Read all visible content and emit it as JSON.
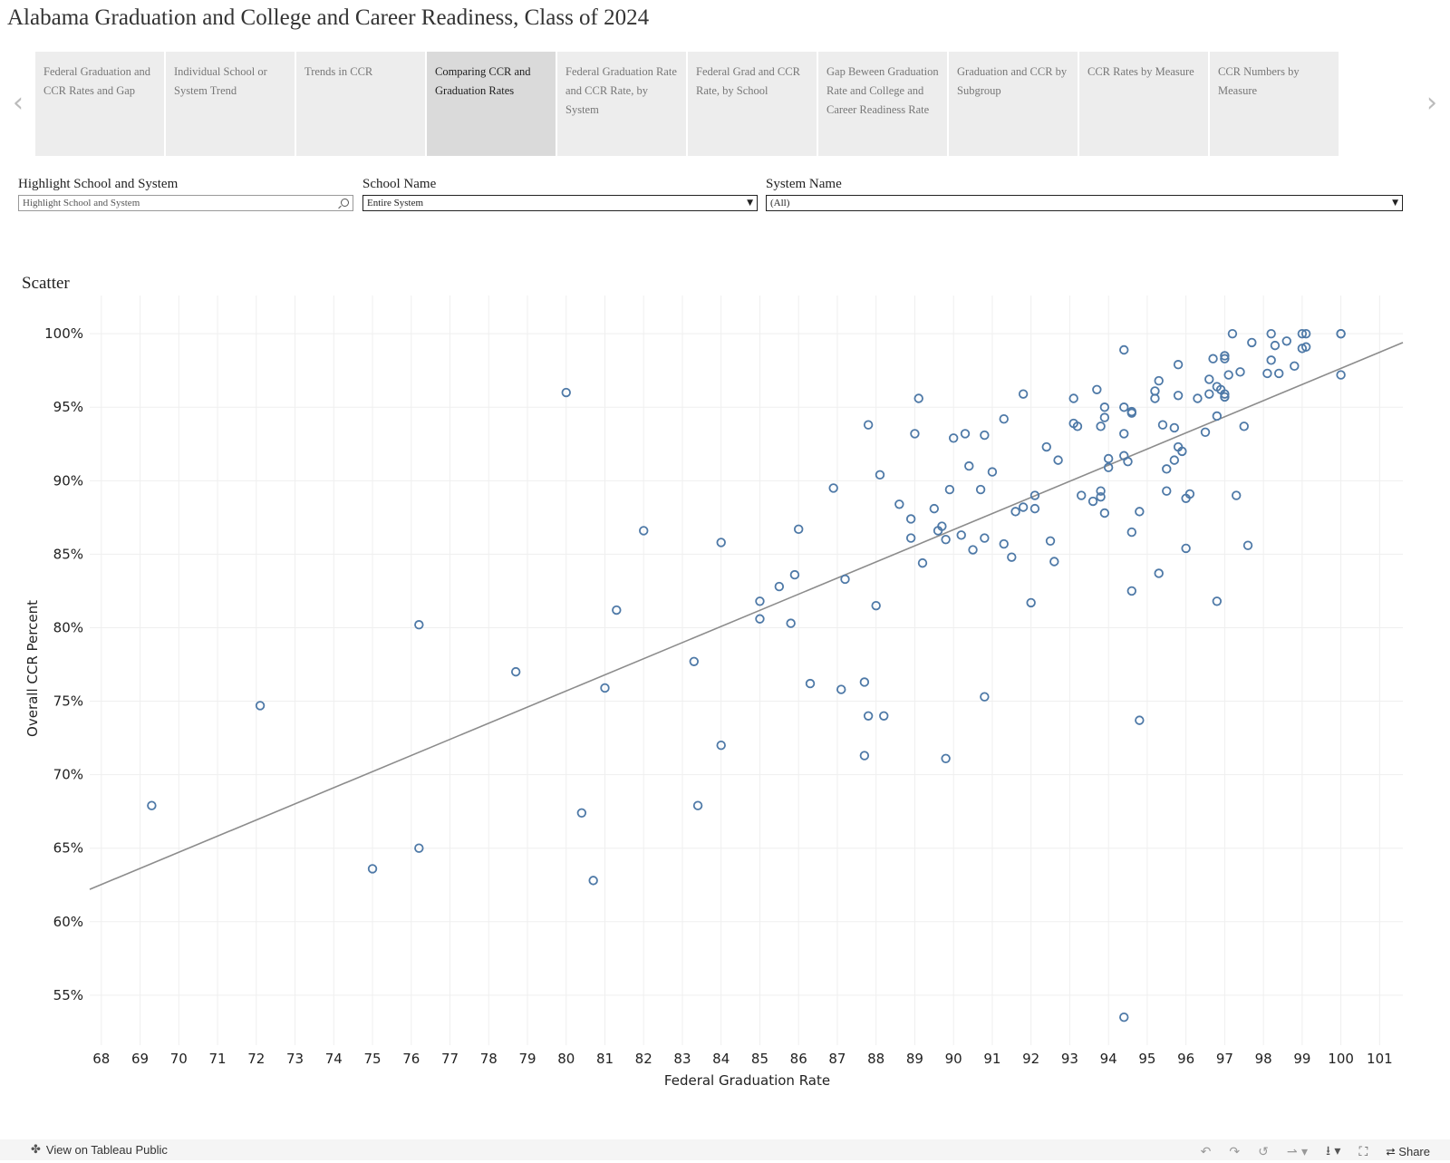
{
  "page_title": "Alabama Graduation and College and Career Readiness, Class of 2024",
  "tabs": [
    {
      "label": "Federal Graduation and CCR Rates and Gap",
      "active": false
    },
    {
      "label": "Individual School or System Trend",
      "active": false
    },
    {
      "label": "Trends in CCR",
      "active": false
    },
    {
      "label": "Comparing CCR and Graduation Rates",
      "active": true
    },
    {
      "label": "Federal Graduation Rate and CCR Rate, by System",
      "active": false
    },
    {
      "label": "Federal Grad and CCR Rate, by School",
      "active": false
    },
    {
      "label": "Gap Beween Graduation Rate and College and Career Readiness Rate",
      "active": false
    },
    {
      "label": "Graduation and CCR by Subgroup",
      "active": false
    },
    {
      "label": "CCR Rates by Measure",
      "active": false
    },
    {
      "label": "CCR Numbers by Measure",
      "active": false
    }
  ],
  "filters": {
    "highlight": {
      "label": "Highlight School and System",
      "placeholder": "Highlight School and System"
    },
    "school": {
      "label": "School Name",
      "value": "Entire System"
    },
    "system": {
      "label": "System Name",
      "value": "(All)"
    }
  },
  "chart_title": "Scatter",
  "toolbar": {
    "view_on": "View on Tableau Public",
    "share": "Share"
  },
  "colors": {
    "marker": "#4e79a7",
    "trend": "#8c8c8c",
    "tab_active": "#dadada",
    "tab": "#ededed"
  },
  "chart_data": {
    "type": "scatter",
    "xlabel": "Federal Graduation Rate",
    "ylabel": "Overall CCR Percent",
    "xlim": [
      67.7,
      101.6
    ],
    "ylim": [
      51.6,
      102.6
    ],
    "x_ticks": [
      68,
      69,
      70,
      71,
      72,
      73,
      74,
      75,
      76,
      77,
      78,
      79,
      80,
      81,
      82,
      83,
      84,
      85,
      86,
      87,
      88,
      89,
      90,
      91,
      92,
      93,
      94,
      95,
      96,
      97,
      98,
      99,
      100,
      101
    ],
    "y_ticks": [
      55,
      60,
      65,
      70,
      75,
      80,
      85,
      90,
      95,
      100
    ],
    "y_tick_labels": [
      "55%",
      "60%",
      "65%",
      "70%",
      "75%",
      "80%",
      "85%",
      "90%",
      "95%",
      "100%"
    ],
    "grid": true,
    "trend_line": {
      "x": [
        67.7,
        101.6
      ],
      "y": [
        62.2,
        99.4
      ]
    },
    "points": [
      [
        69.3,
        67.9
      ],
      [
        72.1,
        74.7
      ],
      [
        75.0,
        63.6
      ],
      [
        76.2,
        80.2
      ],
      [
        76.2,
        65.0
      ],
      [
        78.7,
        77.0
      ],
      [
        80.0,
        96.0
      ],
      [
        80.4,
        67.4
      ],
      [
        80.7,
        62.8
      ],
      [
        81.0,
        75.9
      ],
      [
        81.3,
        81.2
      ],
      [
        82.0,
        86.6
      ],
      [
        83.3,
        77.7
      ],
      [
        83.4,
        67.9
      ],
      [
        84.0,
        85.8
      ],
      [
        84.0,
        72.0
      ],
      [
        85.0,
        81.8
      ],
      [
        85.0,
        80.6
      ],
      [
        85.5,
        82.8
      ],
      [
        85.8,
        80.3
      ],
      [
        85.9,
        83.6
      ],
      [
        86.0,
        86.7
      ],
      [
        86.3,
        76.2
      ],
      [
        86.9,
        89.5
      ],
      [
        87.1,
        75.8
      ],
      [
        87.2,
        83.3
      ],
      [
        87.7,
        76.3
      ],
      [
        87.7,
        71.3
      ],
      [
        87.8,
        93.8
      ],
      [
        87.8,
        74.0
      ],
      [
        88.0,
        81.5
      ],
      [
        88.1,
        90.4
      ],
      [
        88.2,
        74.0
      ],
      [
        88.6,
        88.4
      ],
      [
        88.9,
        87.4
      ],
      [
        88.9,
        86.1
      ],
      [
        89.0,
        93.2
      ],
      [
        89.1,
        95.6
      ],
      [
        89.2,
        84.4
      ],
      [
        89.5,
        88.1
      ],
      [
        89.6,
        86.6
      ],
      [
        89.7,
        86.9
      ],
      [
        89.8,
        86.0
      ],
      [
        89.8,
        71.1
      ],
      [
        89.9,
        89.4
      ],
      [
        90.0,
        92.9
      ],
      [
        90.2,
        86.3
      ],
      [
        90.3,
        93.2
      ],
      [
        90.4,
        91.0
      ],
      [
        90.5,
        85.3
      ],
      [
        90.7,
        89.4
      ],
      [
        90.8,
        93.1
      ],
      [
        90.8,
        86.1
      ],
      [
        90.8,
        75.3
      ],
      [
        91.0,
        90.6
      ],
      [
        91.3,
        94.2
      ],
      [
        91.3,
        85.7
      ],
      [
        91.5,
        84.8
      ],
      [
        91.6,
        87.9
      ],
      [
        91.8,
        88.2
      ],
      [
        91.8,
        95.9
      ],
      [
        92.0,
        81.7
      ],
      [
        92.1,
        89.0
      ],
      [
        92.1,
        88.1
      ],
      [
        92.4,
        92.3
      ],
      [
        92.5,
        85.9
      ],
      [
        92.6,
        84.5
      ],
      [
        92.7,
        91.4
      ],
      [
        93.1,
        93.9
      ],
      [
        93.1,
        95.6
      ],
      [
        93.2,
        93.7
      ],
      [
        93.3,
        89.0
      ],
      [
        93.6,
        88.6
      ],
      [
        93.7,
        96.2
      ],
      [
        93.8,
        93.7
      ],
      [
        93.8,
        89.3
      ],
      [
        93.8,
        88.9
      ],
      [
        93.9,
        94.3
      ],
      [
        93.9,
        95.0
      ],
      [
        93.9,
        87.8
      ],
      [
        94.0,
        91.5
      ],
      [
        94.0,
        90.9
      ],
      [
        94.4,
        98.9
      ],
      [
        94.4,
        95.0
      ],
      [
        94.4,
        93.2
      ],
      [
        94.4,
        91.7
      ],
      [
        94.4,
        53.5
      ],
      [
        94.5,
        91.3
      ],
      [
        94.6,
        94.7
      ],
      [
        94.6,
        94.6
      ],
      [
        94.6,
        86.5
      ],
      [
        94.6,
        82.5
      ],
      [
        94.8,
        87.9
      ],
      [
        94.8,
        73.7
      ],
      [
        95.2,
        95.6
      ],
      [
        95.2,
        96.1
      ],
      [
        95.3,
        96.8
      ],
      [
        95.3,
        83.7
      ],
      [
        95.4,
        93.8
      ],
      [
        95.5,
        90.8
      ],
      [
        95.5,
        89.3
      ],
      [
        95.7,
        93.6
      ],
      [
        95.7,
        91.4
      ],
      [
        95.8,
        92.3
      ],
      [
        95.8,
        95.8
      ],
      [
        95.8,
        97.9
      ],
      [
        95.9,
        92.0
      ],
      [
        96.0,
        88.8
      ],
      [
        96.0,
        85.4
      ],
      [
        96.1,
        89.1
      ],
      [
        96.3,
        95.6
      ],
      [
        96.5,
        93.3
      ],
      [
        96.6,
        95.9
      ],
      [
        96.6,
        96.9
      ],
      [
        96.7,
        98.3
      ],
      [
        96.8,
        94.4
      ],
      [
        96.8,
        96.4
      ],
      [
        96.8,
        81.8
      ],
      [
        96.9,
        96.2
      ],
      [
        97.0,
        98.3
      ],
      [
        97.0,
        98.5
      ],
      [
        97.0,
        95.7
      ],
      [
        97.0,
        95.9
      ],
      [
        97.1,
        97.2
      ],
      [
        97.2,
        100.0
      ],
      [
        97.3,
        89.0
      ],
      [
        97.4,
        97.4
      ],
      [
        97.5,
        93.7
      ],
      [
        97.6,
        85.6
      ],
      [
        97.7,
        99.4
      ],
      [
        98.1,
        97.3
      ],
      [
        98.2,
        100.0
      ],
      [
        98.2,
        98.2
      ],
      [
        98.3,
        99.2
      ],
      [
        98.4,
        97.3
      ],
      [
        98.6,
        99.5
      ],
      [
        98.8,
        97.8
      ],
      [
        99.0,
        100.0
      ],
      [
        99.0,
        99.0
      ],
      [
        99.1,
        100.0
      ],
      [
        99.1,
        99.1
      ],
      [
        100.0,
        100.0
      ],
      [
        100.0,
        100.0
      ],
      [
        100.0,
        97.2
      ]
    ]
  }
}
